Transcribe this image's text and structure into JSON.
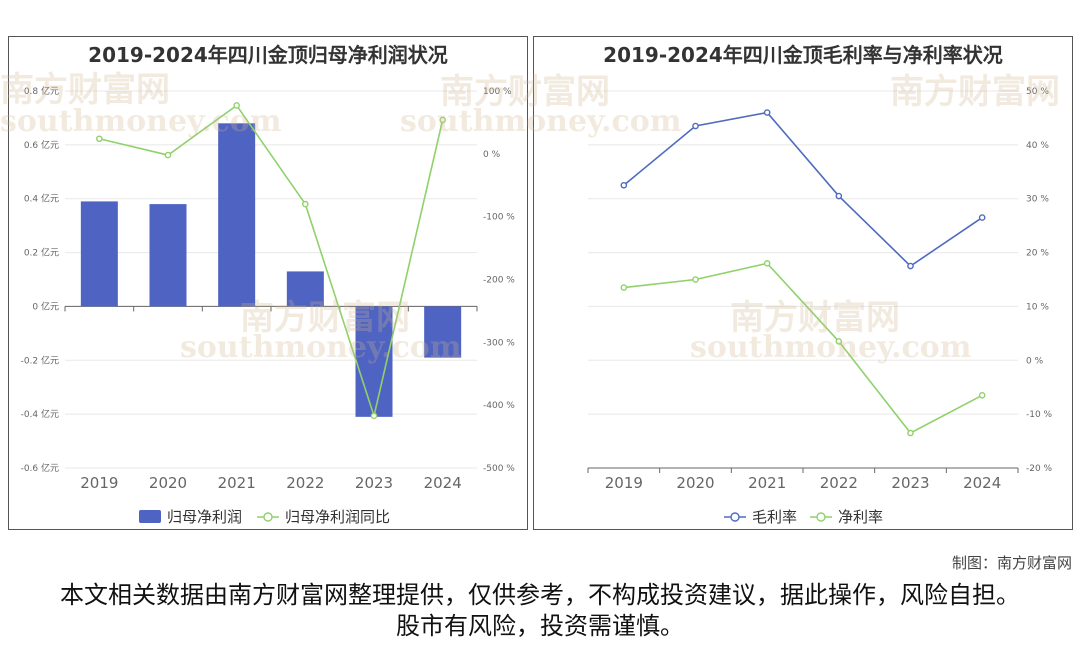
{
  "credit": "制图：南方财富网",
  "disclaimer": "本文相关数据由南方财富网整理提供，仅供参考，不构成投资建议，据此操作，风险自担。股市有风险，投资需谨慎。",
  "watermark": {
    "cn": "南方财富网",
    "en": "southmoney.com"
  },
  "chart_data": [
    {
      "type": "bar",
      "title": "2019-2024年四川金顶归母净利润状况",
      "categories": [
        "2019",
        "2020",
        "2021",
        "2022",
        "2023",
        "2024"
      ],
      "series": [
        {
          "name": "归母净利润",
          "type": "bar",
          "axis": "left",
          "values": [
            0.39,
            0.38,
            0.68,
            0.13,
            -0.41,
            -0.19
          ],
          "color": "#4e63c2"
        },
        {
          "name": "归母净利润同比",
          "type": "line",
          "axis": "right",
          "values": [
            24,
            -2,
            77,
            -80,
            -417,
            54
          ],
          "color": "#8fd16b"
        }
      ],
      "y_left": {
        "min": -0.6,
        "max": 0.8,
        "step": 0.2,
        "unit": "亿元",
        "tick_labels": [
          "0.8 亿元",
          "0.6 亿元",
          "0.4 亿元",
          "0.2 亿元",
          "0 亿元",
          "-0.2 亿元",
          "-0.4 亿元",
          "-0.6 亿元"
        ]
      },
      "y_right": {
        "min": -500,
        "max": 100,
        "step": 100,
        "unit": "%",
        "tick_labels": [
          "100 %",
          "0 %",
          "-100 %",
          "-200 %",
          "-300 %",
          "-400 %",
          "-500 %"
        ]
      },
      "legend_position": "bottom-center",
      "grid": true
    },
    {
      "type": "line",
      "title": "2019-2024年四川金顶毛利率与净利率状况",
      "categories": [
        "2019",
        "2020",
        "2021",
        "2022",
        "2023",
        "2024"
      ],
      "series": [
        {
          "name": "毛利率",
          "values": [
            32.5,
            43.5,
            46,
            30.5,
            17.5,
            26.5
          ],
          "color": "#4e6bc0"
        },
        {
          "name": "净利率",
          "values": [
            13.5,
            15,
            18,
            3.5,
            -13.5,
            -6.5
          ],
          "color": "#8fd16b"
        }
      ],
      "y_right": {
        "min": -20,
        "max": 50,
        "step": 10,
        "unit": "%",
        "tick_labels": [
          "50 %",
          "40 %",
          "30 %",
          "20 %",
          "10 %",
          "0 %",
          "-10 %",
          "-20 %"
        ]
      },
      "legend_position": "bottom-center",
      "grid": true
    }
  ]
}
